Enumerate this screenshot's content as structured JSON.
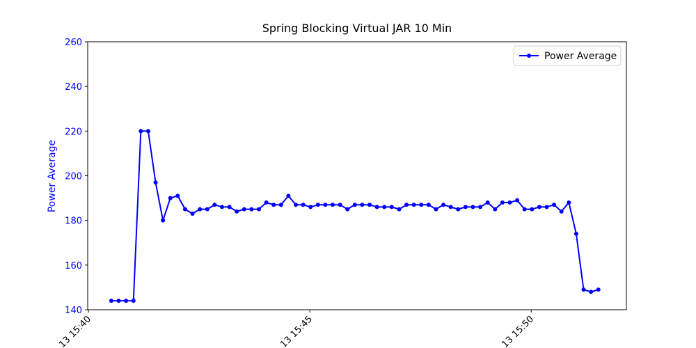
{
  "chart_data": {
    "type": "line",
    "title": "Spring Blocking Virtual JAR 10 Min",
    "y_label": "Power Average",
    "x": [
      "15:40:31",
      "15:40:41",
      "15:40:51",
      "15:41:01",
      "15:41:11",
      "15:41:21",
      "15:41:31",
      "15:41:41",
      "15:41:51",
      "15:42:01",
      "15:42:11",
      "15:42:21",
      "15:42:31",
      "15:42:41",
      "15:42:51",
      "15:43:01",
      "15:43:11",
      "15:43:21",
      "15:43:31",
      "15:43:41",
      "15:43:51",
      "15:44:01",
      "15:44:11",
      "15:44:21",
      "15:44:31",
      "15:44:41",
      "15:44:51",
      "15:45:01",
      "15:45:11",
      "15:45:21",
      "15:45:31",
      "15:45:41",
      "15:45:51",
      "15:46:01",
      "15:46:11",
      "15:46:21",
      "15:46:31",
      "15:46:41",
      "15:46:51",
      "15:47:01",
      "15:47:11",
      "15:47:21",
      "15:47:31",
      "15:47:41",
      "15:47:51",
      "15:48:01",
      "15:48:11",
      "15:48:21",
      "15:48:31",
      "15:48:41",
      "15:48:51",
      "15:49:01",
      "15:49:11",
      "15:49:21",
      "15:49:31",
      "15:49:41",
      "15:49:51",
      "15:50:01",
      "15:50:11",
      "15:50:21",
      "15:50:31",
      "15:50:41",
      "15:50:51",
      "15:51:01",
      "15:51:11",
      "15:51:21",
      "15:51:31"
    ],
    "series": [
      {
        "name": "Power Average",
        "color": "#0000ff",
        "values": [
          144,
          144,
          144,
          144,
          220,
          220,
          197,
          180,
          190,
          191,
          185,
          183,
          185,
          185,
          187,
          186,
          186,
          184,
          185,
          185,
          185,
          188,
          187,
          187,
          191,
          187,
          187,
          186,
          187,
          187,
          187,
          187,
          185,
          187,
          187,
          187,
          186,
          186,
          186,
          185,
          187,
          187,
          187,
          187,
          185,
          187,
          186,
          185,
          186,
          186,
          186,
          188,
          185,
          188,
          188,
          189,
          185,
          185,
          186,
          186,
          187,
          184,
          188,
          174,
          149,
          148,
          149
        ]
      }
    ],
    "xlim": [
      "15:39:59",
      "15:52:09"
    ],
    "xticks": [
      {
        "value": "15:40:00",
        "label": "13 15:40"
      },
      {
        "value": "15:45:00",
        "label": "13 15:45"
      },
      {
        "value": "15:50:00",
        "label": "13 15:50"
      }
    ],
    "ylim": [
      140,
      260
    ],
    "yticks": [
      140,
      160,
      180,
      200,
      220,
      240,
      260
    ],
    "y_axis_color": "#0000ff",
    "legend": "upper right",
    "grid": false
  }
}
